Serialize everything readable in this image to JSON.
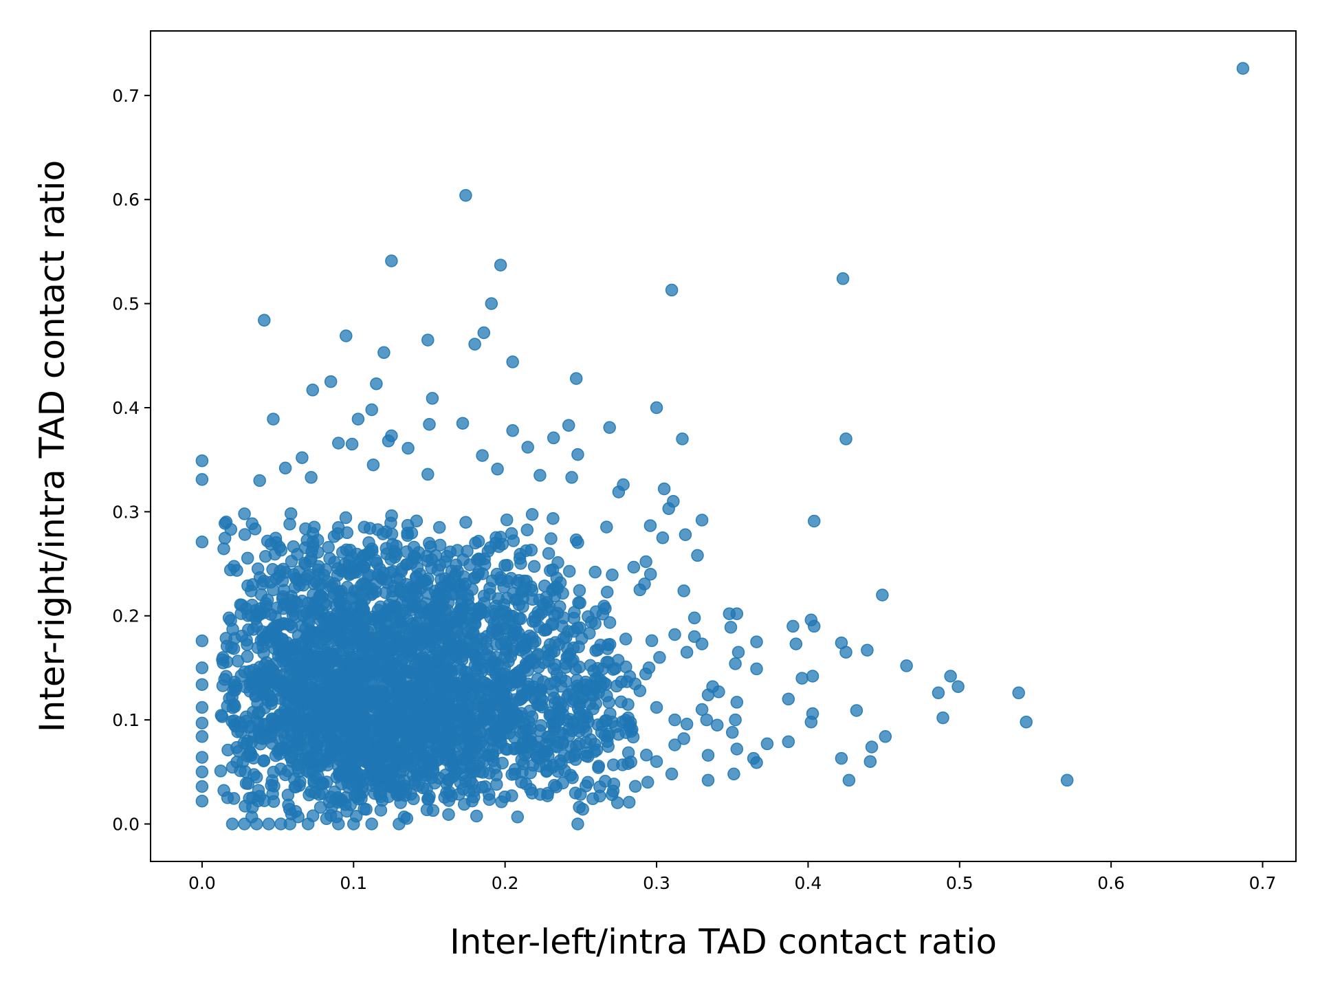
{
  "chart_data": {
    "type": "scatter",
    "title": "",
    "xlabel": "Inter-left/intra TAD contact ratio",
    "ylabel": "Inter-right/intra TAD contact ratio",
    "xlim": [
      -0.034,
      0.722
    ],
    "ylim": [
      -0.036,
      0.762
    ],
    "xticks": [
      0.0,
      0.1,
      0.2,
      0.3,
      0.4,
      0.5,
      0.6,
      0.7
    ],
    "yticks": [
      0.0,
      0.1,
      0.2,
      0.3,
      0.4,
      0.5,
      0.6,
      0.7
    ],
    "xtick_labels": [
      "0.0",
      "0.1",
      "0.2",
      "0.3",
      "0.4",
      "0.5",
      "0.6",
      "0.7"
    ],
    "ytick_labels": [
      "0.0",
      "0.1",
      "0.2",
      "0.3",
      "0.4",
      "0.5",
      "0.6",
      "0.7"
    ],
    "marker_color": "#1f77b4",
    "marker_alpha": 0.75,
    "grid": false,
    "legend": "none",
    "cluster": {
      "x_range": [
        0.0,
        0.3
      ],
      "y_range": [
        0.0,
        0.3
      ],
      "x_mode": 0.1,
      "y_mode": 0.1,
      "approx_point_count": 3000,
      "seed": 7
    },
    "points": [
      [
        0.687,
        0.726
      ],
      [
        0.174,
        0.604
      ],
      [
        0.125,
        0.541
      ],
      [
        0.197,
        0.537
      ],
      [
        0.423,
        0.524
      ],
      [
        0.31,
        0.513
      ],
      [
        0.191,
        0.5
      ],
      [
        0.041,
        0.484
      ],
      [
        0.186,
        0.472
      ],
      [
        0.095,
        0.469
      ],
      [
        0.149,
        0.465
      ],
      [
        0.18,
        0.461
      ],
      [
        0.12,
        0.453
      ],
      [
        0.205,
        0.444
      ],
      [
        0.247,
        0.428
      ],
      [
        0.085,
        0.425
      ],
      [
        0.115,
        0.423
      ],
      [
        0.073,
        0.417
      ],
      [
        0.152,
        0.409
      ],
      [
        0.3,
        0.4
      ],
      [
        0.112,
        0.398
      ],
      [
        0.047,
        0.389
      ],
      [
        0.103,
        0.389
      ],
      [
        0.172,
        0.385
      ],
      [
        0.242,
        0.383
      ],
      [
        0.15,
        0.384
      ],
      [
        0.205,
        0.378
      ],
      [
        0.269,
        0.381
      ],
      [
        0.125,
        0.373
      ],
      [
        0.232,
        0.371
      ],
      [
        0.317,
        0.37
      ],
      [
        0.425,
        0.37
      ],
      [
        0.09,
        0.366
      ],
      [
        0.099,
        0.365
      ],
      [
        0.123,
        0.368
      ],
      [
        0.215,
        0.362
      ],
      [
        0.136,
        0.361
      ],
      [
        0.185,
        0.354
      ],
      [
        0.248,
        0.355
      ],
      [
        0.0,
        0.349
      ],
      [
        0.066,
        0.352
      ],
      [
        0.113,
        0.345
      ],
      [
        0.195,
        0.341
      ],
      [
        0.055,
        0.342
      ],
      [
        0.0,
        0.331
      ],
      [
        0.038,
        0.33
      ],
      [
        0.072,
        0.333
      ],
      [
        0.149,
        0.336
      ],
      [
        0.223,
        0.335
      ],
      [
        0.244,
        0.333
      ],
      [
        0.278,
        0.326
      ],
      [
        0.305,
        0.322
      ],
      [
        0.275,
        0.319
      ],
      [
        0.311,
        0.31
      ],
      [
        0.404,
        0.291
      ],
      [
        0.33,
        0.292
      ],
      [
        0.308,
        0.303
      ],
      [
        0.319,
        0.278
      ],
      [
        0.304,
        0.275
      ],
      [
        0.0,
        0.271
      ],
      [
        0.019,
        0.283
      ],
      [
        0.028,
        0.298
      ],
      [
        0.0,
        0.176
      ],
      [
        0.0,
        0.15
      ],
      [
        0.0,
        0.134
      ],
      [
        0.0,
        0.112
      ],
      [
        0.0,
        0.097
      ],
      [
        0.0,
        0.084
      ],
      [
        0.0,
        0.064
      ],
      [
        0.0,
        0.05
      ],
      [
        0.0,
        0.036
      ],
      [
        0.0,
        0.022
      ],
      [
        0.02,
        0.0
      ],
      [
        0.028,
        0.0
      ],
      [
        0.036,
        0.0
      ],
      [
        0.044,
        0.0
      ],
      [
        0.052,
        0.0
      ],
      [
        0.058,
        0.0
      ],
      [
        0.07,
        0.0
      ],
      [
        0.09,
        0.0
      ],
      [
        0.1,
        0.0
      ],
      [
        0.112,
        0.0
      ],
      [
        0.13,
        0.0
      ],
      [
        0.248,
        0.0
      ],
      [
        0.327,
        0.258
      ],
      [
        0.325,
        0.198
      ],
      [
        0.318,
        0.224
      ],
      [
        0.293,
        0.252
      ],
      [
        0.296,
        0.24
      ],
      [
        0.289,
        0.225
      ],
      [
        0.348,
        0.202
      ],
      [
        0.353,
        0.202
      ],
      [
        0.349,
        0.189
      ],
      [
        0.366,
        0.175
      ],
      [
        0.354,
        0.165
      ],
      [
        0.352,
        0.154
      ],
      [
        0.366,
        0.149
      ],
      [
        0.33,
        0.173
      ],
      [
        0.32,
        0.165
      ],
      [
        0.325,
        0.18
      ],
      [
        0.312,
        0.182
      ],
      [
        0.302,
        0.16
      ],
      [
        0.295,
        0.15
      ],
      [
        0.289,
        0.128
      ],
      [
        0.3,
        0.112
      ],
      [
        0.312,
        0.1
      ],
      [
        0.32,
        0.096
      ],
      [
        0.33,
        0.11
      ],
      [
        0.337,
        0.132
      ],
      [
        0.341,
        0.127
      ],
      [
        0.334,
        0.124
      ],
      [
        0.353,
        0.117
      ],
      [
        0.333,
        0.1
      ],
      [
        0.34,
        0.095
      ],
      [
        0.352,
        0.1
      ],
      [
        0.35,
        0.088
      ],
      [
        0.318,
        0.082
      ],
      [
        0.312,
        0.076
      ],
      [
        0.334,
        0.066
      ],
      [
        0.353,
        0.072
      ],
      [
        0.364,
        0.063
      ],
      [
        0.366,
        0.059
      ],
      [
        0.373,
        0.077
      ],
      [
        0.3,
        0.06
      ],
      [
        0.31,
        0.048
      ],
      [
        0.334,
        0.042
      ],
      [
        0.351,
        0.048
      ],
      [
        0.39,
        0.19
      ],
      [
        0.392,
        0.173
      ],
      [
        0.402,
        0.196
      ],
      [
        0.404,
        0.19
      ],
      [
        0.396,
        0.14
      ],
      [
        0.403,
        0.142
      ],
      [
        0.387,
        0.12
      ],
      [
        0.387,
        0.079
      ],
      [
        0.402,
        0.098
      ],
      [
        0.403,
        0.106
      ],
      [
        0.422,
        0.174
      ],
      [
        0.425,
        0.165
      ],
      [
        0.439,
        0.167
      ],
      [
        0.449,
        0.22
      ],
      [
        0.465,
        0.152
      ],
      [
        0.432,
        0.109
      ],
      [
        0.442,
        0.074
      ],
      [
        0.451,
        0.084
      ],
      [
        0.441,
        0.06
      ],
      [
        0.422,
        0.063
      ],
      [
        0.427,
        0.042
      ],
      [
        0.486,
        0.126
      ],
      [
        0.494,
        0.142
      ],
      [
        0.499,
        0.132
      ],
      [
        0.489,
        0.102
      ],
      [
        0.539,
        0.126
      ],
      [
        0.544,
        0.098
      ],
      [
        0.571,
        0.042
      ]
    ]
  }
}
